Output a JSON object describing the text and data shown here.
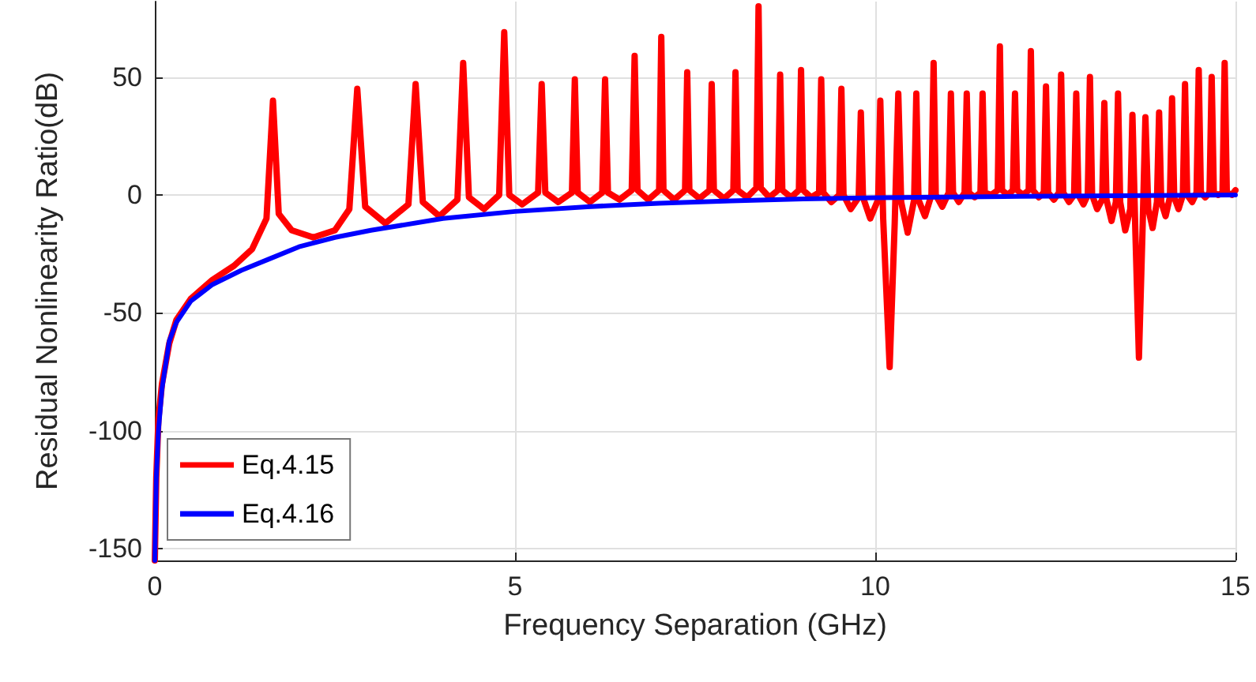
{
  "chart_data": {
    "type": "line",
    "xlabel": "Frequency Separation (GHz)",
    "ylabel": "Residual Nonlinearity Ratio(dB)",
    "xlim": [
      0,
      15
    ],
    "xticks": [
      0,
      5,
      10,
      15
    ],
    "ylim": [
      -155,
      82
    ],
    "yticks": [
      -150,
      -100,
      -50,
      0,
      50
    ],
    "grid": true,
    "legend": "bottom left",
    "marker": "none",
    "line_style": "solid",
    "series": [
      {
        "name": "Eq.4.15",
        "color": "#ff0000",
        "x": [
          0,
          0.02,
          0.05,
          0.1,
          0.2,
          0.3,
          0.5,
          0.8,
          1.1,
          1.35,
          1.55,
          1.64,
          1.72,
          1.9,
          2.2,
          2.5,
          2.7,
          2.81,
          2.92,
          3.2,
          3.52,
          3.62,
          3.72,
          3.95,
          4.2,
          4.28,
          4.36,
          4.57,
          4.78,
          4.85,
          4.92,
          5.1,
          5.32,
          5.37,
          5.42,
          5.6,
          5.79,
          5.83,
          5.87,
          6.04,
          6.21,
          6.25,
          6.29,
          6.45,
          6.62,
          6.66,
          6.7,
          6.85,
          7.0,
          7.03,
          7.06,
          7.21,
          7.36,
          7.39,
          7.42,
          7.56,
          7.7,
          7.73,
          7.76,
          7.9,
          8.03,
          8.06,
          8.09,
          8.22,
          8.35,
          8.38,
          8.41,
          8.53,
          8.65,
          8.68,
          8.71,
          8.83,
          8.94,
          8.97,
          9.0,
          9.11,
          9.22,
          9.25,
          9.28,
          9.39,
          9.5,
          9.53,
          9.56,
          9.66,
          9.77,
          9.8,
          9.83,
          9.93,
          10.04,
          10.07,
          10.11,
          10.2,
          10.27,
          10.32,
          10.36,
          10.45,
          10.54,
          10.57,
          10.6,
          10.69,
          10.78,
          10.81,
          10.84,
          10.93,
          11.02,
          11.05,
          11.08,
          11.16,
          11.24,
          11.27,
          11.3,
          11.38,
          11.46,
          11.49,
          11.52,
          11.61,
          11.7,
          11.73,
          11.76,
          11.84,
          11.91,
          11.94,
          11.97,
          12.05,
          12.13,
          12.16,
          12.19,
          12.27,
          12.34,
          12.37,
          12.4,
          12.48,
          12.55,
          12.58,
          12.61,
          12.69,
          12.76,
          12.79,
          12.82,
          12.89,
          12.95,
          12.98,
          13.01,
          13.08,
          13.15,
          13.18,
          13.21,
          13.28,
          13.34,
          13.37,
          13.4,
          13.47,
          13.54,
          13.57,
          13.61,
          13.66,
          13.71,
          13.75,
          13.79,
          13.85,
          13.91,
          13.94,
          13.97,
          14.03,
          14.09,
          14.12,
          14.15,
          14.21,
          14.27,
          14.3,
          14.33,
          14.4,
          14.46,
          14.49,
          14.52,
          14.58,
          14.64,
          14.67,
          14.7,
          14.76,
          14.82,
          14.85,
          14.88,
          14.95,
          15
        ],
        "values": [
          -155,
          -120,
          -95,
          -80,
          -63,
          -53,
          -44,
          -36,
          -30,
          -23,
          -10,
          40,
          -8,
          -15,
          -18,
          -15,
          -6,
          45,
          -5,
          -12,
          -4,
          47,
          -3,
          -9,
          -2,
          56,
          -1,
          -6,
          0,
          69,
          0,
          -4,
          1,
          47,
          1,
          -3,
          1,
          49,
          1,
          -3,
          1,
          49,
          1,
          -2,
          2,
          59,
          2,
          -2,
          2,
          67,
          2,
          -2,
          2,
          52,
          2,
          -1.5,
          2,
          47,
          2,
          -1.5,
          2,
          52,
          2,
          -1,
          3,
          80,
          3,
          -1,
          2,
          51,
          2,
          -1,
          2,
          53,
          2,
          -1,
          1,
          49,
          1,
          -3,
          0,
          45,
          0,
          -6,
          -1,
          35,
          -1,
          -10,
          -2,
          40,
          -10,
          -73,
          -12,
          43,
          -3,
          -16,
          -2,
          43,
          -2,
          -9,
          0,
          56,
          0,
          -5,
          1,
          43,
          1,
          -3,
          1,
          43,
          1,
          -1,
          1,
          43,
          1,
          0,
          2,
          63,
          2,
          0,
          2,
          43,
          2,
          0,
          2,
          61,
          2,
          -1,
          1,
          46,
          1,
          -2,
          1,
          51,
          1,
          -3,
          0,
          43,
          0,
          -4,
          0,
          50,
          0,
          -6,
          -2,
          39,
          -2,
          -11,
          -3,
          43,
          -3,
          -15,
          -6,
          34,
          -15,
          -69,
          -15,
          33,
          -6,
          -14,
          -3,
          35,
          -3,
          -9,
          -1,
          41,
          -1,
          -6,
          0,
          47,
          0,
          -3,
          1,
          53,
          1,
          -1,
          1,
          50,
          1,
          0,
          1,
          56,
          1,
          0,
          2
        ]
      },
      {
        "name": "Eq.4.16",
        "color": "#0000ff",
        "x": [
          0,
          0.02,
          0.05,
          0.1,
          0.2,
          0.3,
          0.5,
          0.8,
          1.2,
          1.6,
          2,
          2.5,
          3,
          4,
          5,
          6,
          7,
          8,
          9,
          10,
          12,
          15
        ],
        "values": [
          -155,
          -120,
          -100,
          -82,
          -62,
          -54,
          -45,
          -38,
          -32,
          -27,
          -22,
          -18,
          -15,
          -10,
          -7,
          -5,
          -3.5,
          -2.5,
          -1.7,
          -1.2,
          -0.6,
          0
        ]
      }
    ]
  }
}
